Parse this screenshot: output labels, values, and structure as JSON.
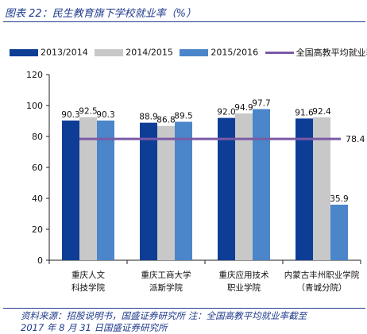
{
  "title": "图表 22：民生教育旗下学校就业率（%）",
  "legend": {
    "items": [
      {
        "label": "2013/2014",
        "color": "#0e3d96",
        "kind": "bar"
      },
      {
        "label": "2014/2015",
        "color": "#c8c8c8",
        "kind": "bar"
      },
      {
        "label": "2015/2016",
        "color": "#4a86c9",
        "kind": "bar"
      },
      {
        "label": "全国高教平均就业率",
        "color": "#7b5aa6",
        "kind": "line"
      }
    ]
  },
  "chart_data": {
    "type": "bar",
    "categories": [
      [
        "重庆人文",
        "科技学院"
      ],
      [
        "重庆工商大学",
        "派斯学院"
      ],
      [
        "重庆应用技术",
        "职业学院"
      ],
      [
        "内蒙古丰州职业学院",
        "（青城分院）"
      ]
    ],
    "series": [
      {
        "name": "2013/2014",
        "values": [
          90.3,
          88.9,
          92.0,
          91.6
        ],
        "labels": [
          "90.3",
          "88.9",
          "92.0",
          "91.6"
        ]
      },
      {
        "name": "2014/2015",
        "values": [
          92.5,
          86.8,
          94.9,
          92.4
        ],
        "labels": [
          "92.5",
          "86.8",
          "94.9",
          "92.4"
        ]
      },
      {
        "name": "2015/2016",
        "values": [
          90.3,
          89.5,
          97.7,
          35.9
        ],
        "labels": [
          "90.3",
          "89.5",
          "97.7",
          "35.9"
        ]
      }
    ],
    "reference_line": {
      "name": "全国高教平均就业率",
      "value": 78.4,
      "label": "78.4"
    },
    "ylim": [
      0,
      120
    ],
    "yticks": [
      "0",
      "20",
      "40",
      "60",
      "80",
      "100",
      "120"
    ],
    "grid": false
  },
  "source": {
    "line1": "资料来源：招股说明书，国盛证券研究所    注：全国高教平均就业率截至",
    "line2": "2017 年 8 月 31 日国盛证券研究所"
  }
}
